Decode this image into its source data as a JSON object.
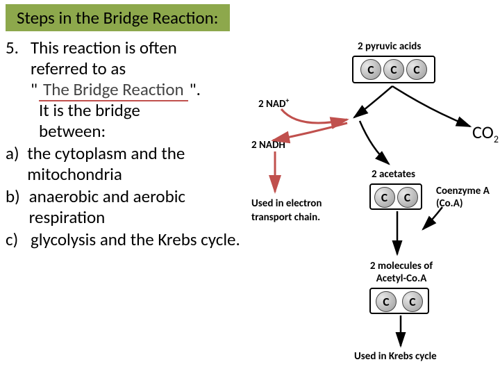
{
  "title": "Steps in the Bridge Reaction:",
  "text": {
    "n5": "5.",
    "line1": "This reaction is often",
    "line2": "referred to as",
    "quote_open": "\"",
    "blank": "The Bridge Reaction",
    "quote_close": "\".",
    "bridge1": "It is the bridge",
    "bridge2": "between:",
    "a_m": "a)",
    "a": "the cytoplasm and the mitochondria",
    "b_m": "b)",
    "b": "anaerobic and aerobic respiration",
    "c_m": "c)",
    "c": "glycolysis and the Krebs cycle."
  },
  "diagram": {
    "pyruvic_label": "2 pyruvic acids",
    "nad_plus": "2 NAD",
    "nadh": "2 NADH",
    "used_etc_1": "Used in electron",
    "used_etc_2": "transport chain.",
    "co2": "CO",
    "acetates": "2 acetates",
    "coA_1": "Coenzyme A",
    "coA_2": "(Co.A)",
    "acetyl_1": "2 molecules of",
    "acetyl_2": "Acetyl-Co.A",
    "krebs": "Used in Krebs cycle",
    "c_letter": "C"
  },
  "colors": {
    "title_bg": "#8da84c",
    "c_grad_light": "#e8e8e8",
    "c_grad_dark": "#9b9b9b",
    "c_border": "#444",
    "arrow_red": "#c0504d",
    "arrow_black": "#000000",
    "underline_red": "#c0504d"
  },
  "sizes": {
    "mol_large": 30,
    "mol_small": 24
  }
}
